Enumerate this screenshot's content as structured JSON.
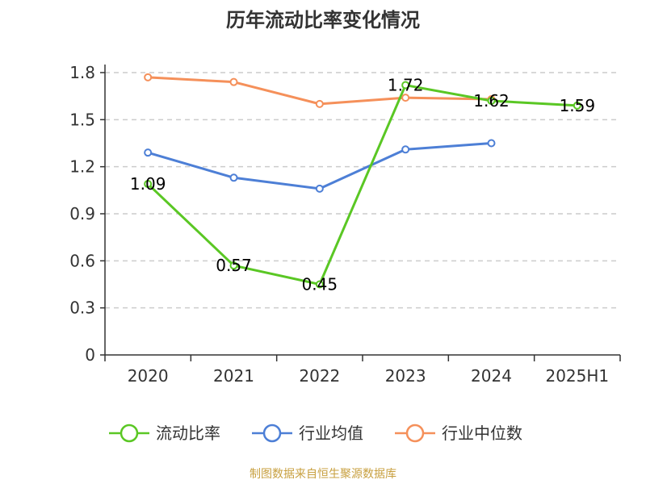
{
  "chart_data": {
    "type": "line",
    "title": "历年流动比率变化情况",
    "categories": [
      "2020",
      "2021",
      "2022",
      "2023",
      "2024",
      "2025H1"
    ],
    "ylim": [
      0,
      1.8
    ],
    "yticks": [
      "0",
      "0.3",
      "0.6",
      "0.9",
      "1.2",
      "1.5",
      "1.8"
    ],
    "grid": true,
    "legend_position": "bottom",
    "series": [
      {
        "name": "流动比率",
        "color": "#5ac724",
        "values": [
          1.09,
          0.57,
          0.45,
          1.72,
          1.62,
          1.59
        ],
        "labels": [
          "1.09",
          "0.57",
          "0.45",
          "1.72",
          "1.62",
          "1.59"
        ]
      },
      {
        "name": "行业均值",
        "color": "#4d7fd6",
        "values": [
          1.29,
          1.13,
          1.06,
          1.31,
          1.35,
          null
        ]
      },
      {
        "name": "行业中位数",
        "color": "#f5905a",
        "values": [
          1.77,
          1.74,
          1.6,
          1.64,
          1.63,
          null
        ]
      }
    ]
  },
  "footer": "制图数据来自恒生聚源数据库"
}
